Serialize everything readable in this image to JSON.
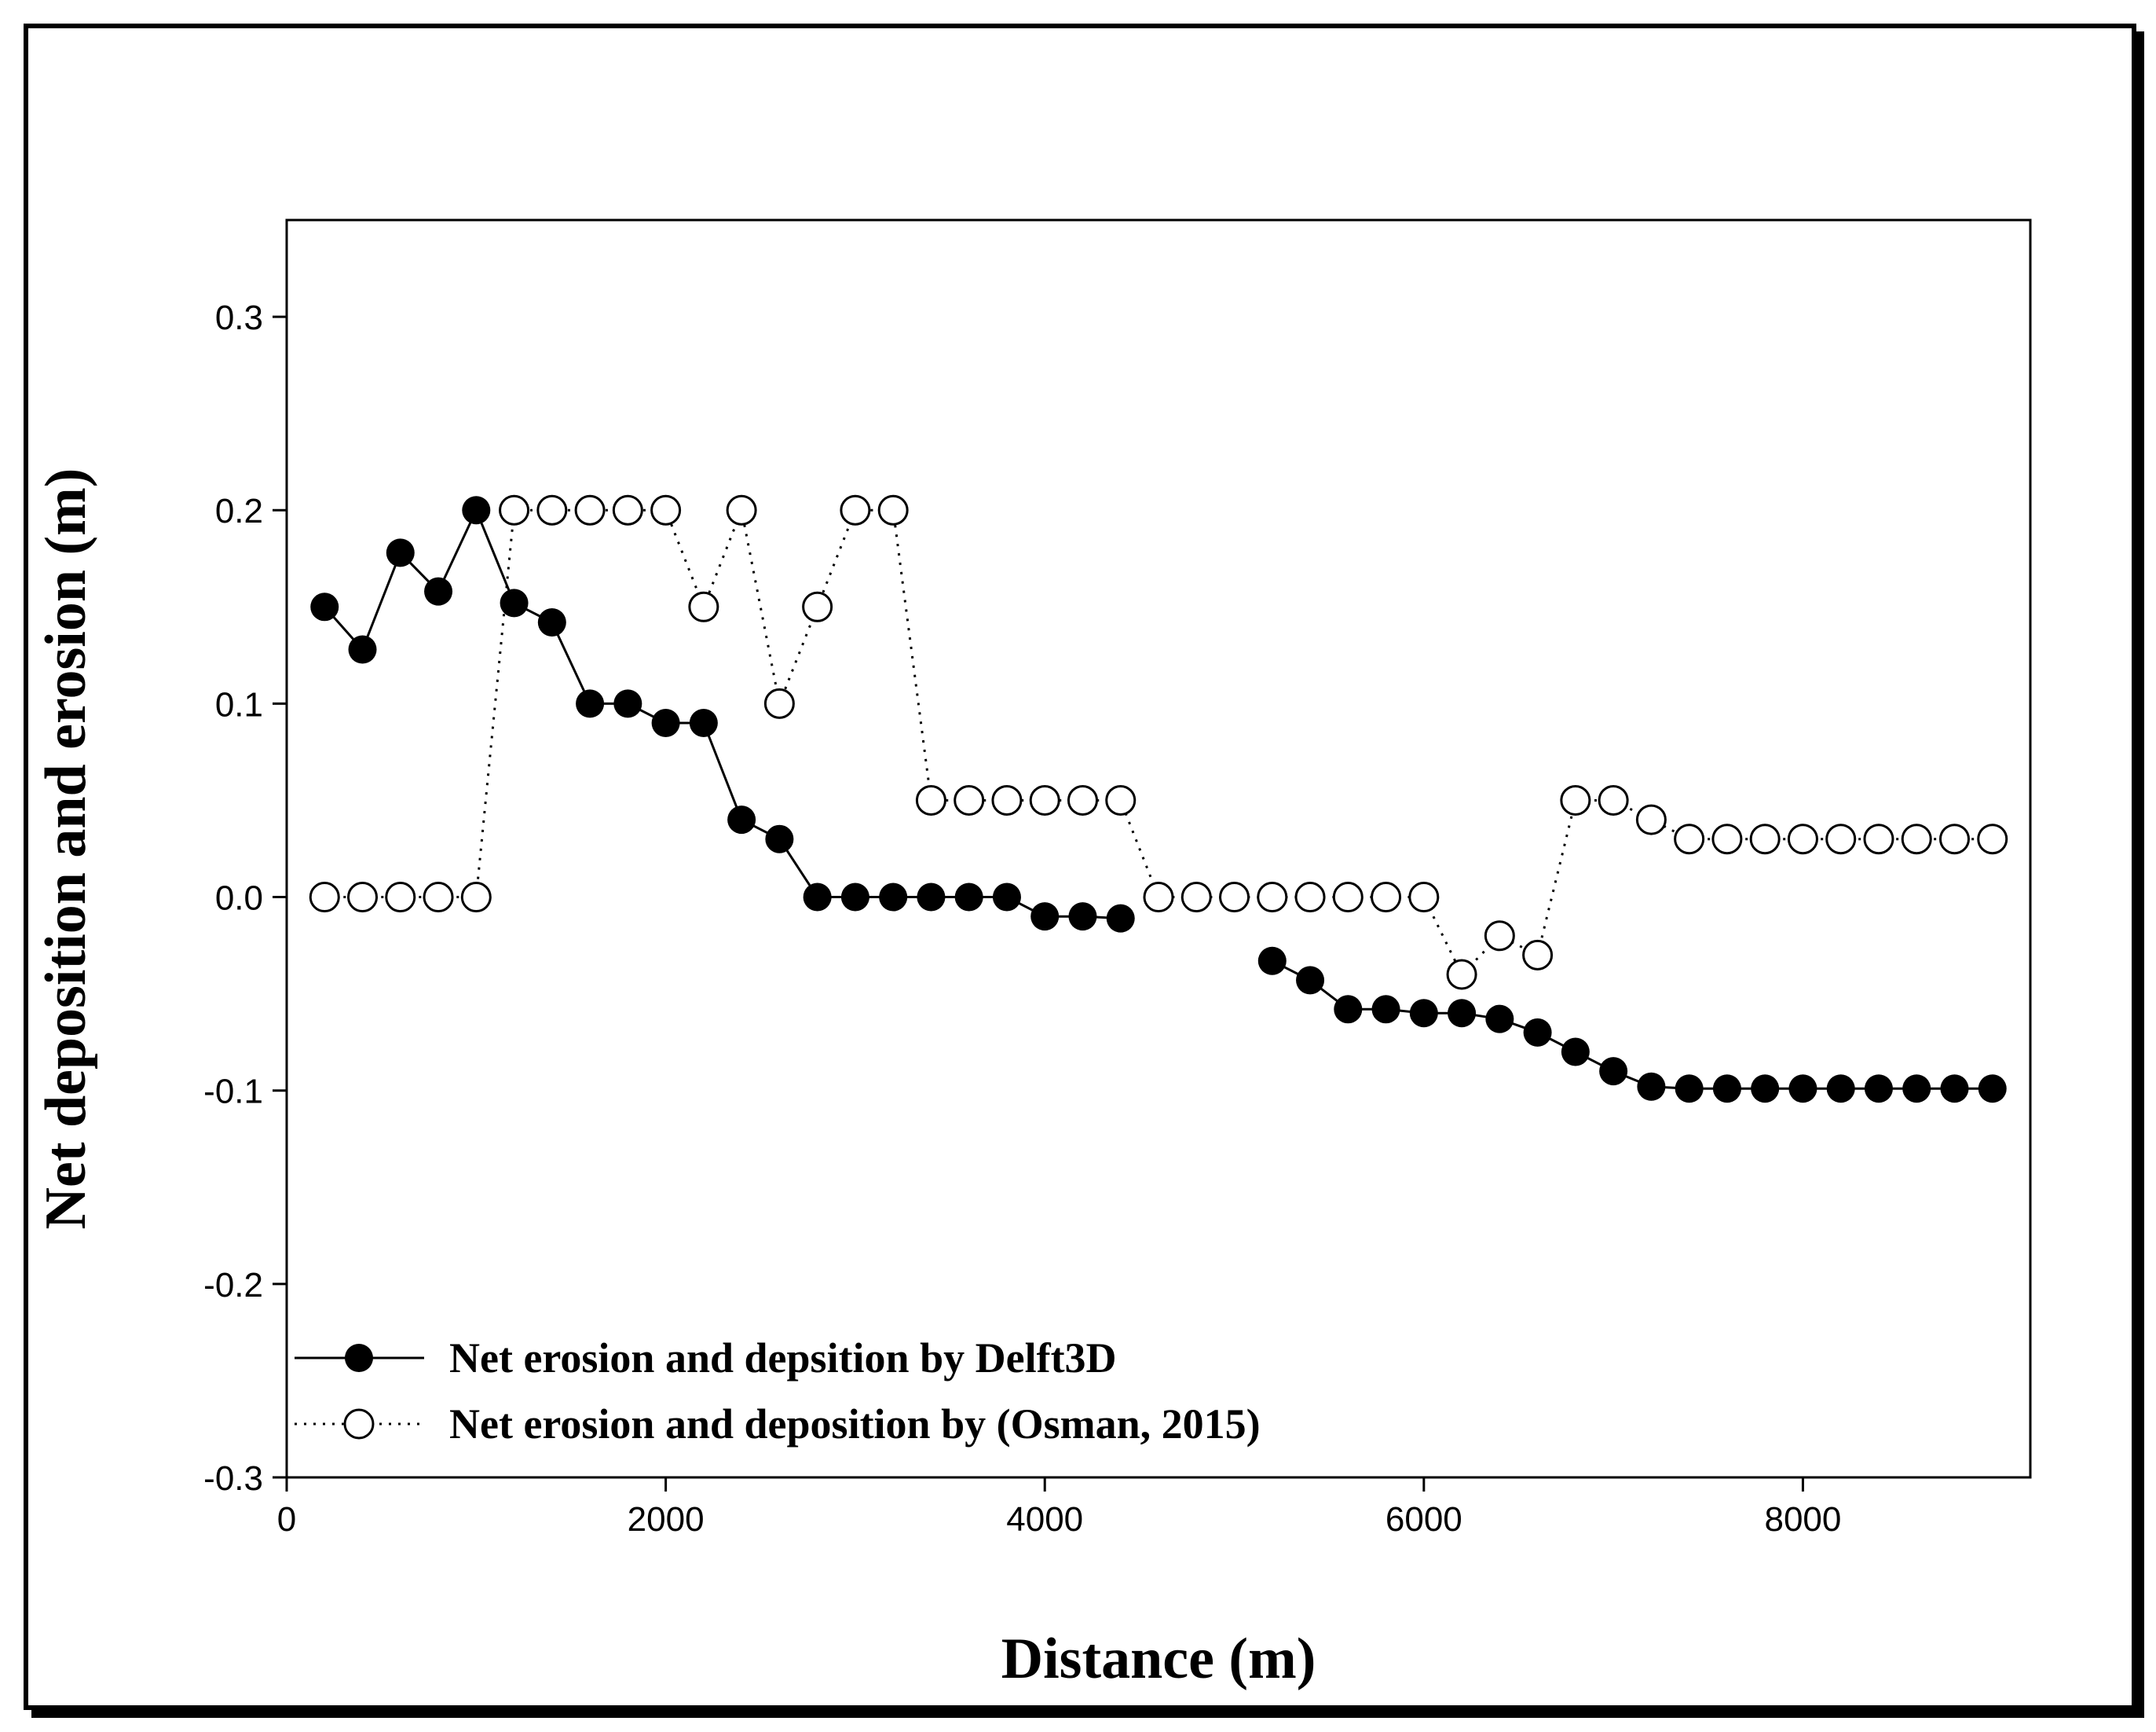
{
  "chart_data": {
    "type": "line",
    "title": "",
    "xlabel": "Distance (m)",
    "ylabel": "Net deposition and erosion (m)",
    "xlim": [
      0,
      9200
    ],
    "ylim": [
      -0.3,
      0.35
    ],
    "xticks": [
      0,
      2000,
      4000,
      6000,
      8000
    ],
    "xtick_labels": [
      "0",
      "2000",
      "4000",
      "6000",
      "8000"
    ],
    "yticks": [
      -0.3,
      -0.2,
      -0.1,
      0.0,
      0.1,
      0.2,
      0.3
    ],
    "ytick_labels": [
      "-0.3",
      "-0.2",
      "-0.1",
      "0.0",
      "0.1",
      "0.2",
      "0.3"
    ],
    "grid": false,
    "legend_position": "bottom-left",
    "x": [
      200,
      400,
      600,
      800,
      1000,
      1200,
      1400,
      1600,
      1800,
      2000,
      2200,
      2400,
      2600,
      2800,
      3000,
      3200,
      3400,
      3600,
      3800,
      4000,
      4200,
      4400,
      4600,
      4800,
      5000,
      5200,
      5400,
      5600,
      5800,
      6000,
      6200,
      6400,
      6600,
      6800,
      7000,
      7200,
      7400,
      7600,
      7800,
      8000,
      8200,
      8400,
      8600,
      8800,
      9000
    ],
    "series": [
      {
        "name": "Net erosion and depsition by Delft3D",
        "style": "solid",
        "marker": "filled-circle",
        "color": "#000000",
        "values": [
          0.15,
          0.128,
          0.178,
          0.158,
          0.2,
          0.152,
          0.142,
          0.1,
          0.1,
          0.09,
          0.09,
          0.04,
          0.03,
          0.0,
          0.0,
          0.0,
          0.0,
          0.0,
          0.0,
          -0.01,
          -0.01,
          -0.011,
          null,
          null,
          null,
          -0.033,
          -0.043,
          -0.058,
          -0.058,
          -0.06,
          -0.06,
          -0.063,
          -0.07,
          -0.08,
          -0.09,
          -0.098,
          -0.099,
          -0.099,
          -0.099,
          -0.099,
          -0.099,
          -0.099,
          -0.099,
          -0.099,
          -0.099
        ]
      },
      {
        "name": "Net erosion and deposition by (Osman, 2015)",
        "style": "dotted",
        "marker": "open-circle",
        "color": "#000000",
        "values": [
          0.0,
          0.0,
          0.0,
          0.0,
          0.0,
          0.2,
          0.2,
          0.2,
          0.2,
          0.2,
          0.15,
          0.2,
          0.1,
          0.15,
          0.2,
          0.2,
          0.05,
          0.05,
          0.05,
          0.05,
          0.05,
          0.05,
          0.0,
          0.0,
          0.0,
          0.0,
          0.0,
          0.0,
          0.0,
          0.0,
          -0.04,
          -0.02,
          -0.03,
          0.05,
          0.05,
          0.04,
          0.03,
          0.03,
          0.03,
          0.03,
          0.03,
          0.03,
          0.03,
          0.03,
          0.03
        ]
      }
    ]
  }
}
